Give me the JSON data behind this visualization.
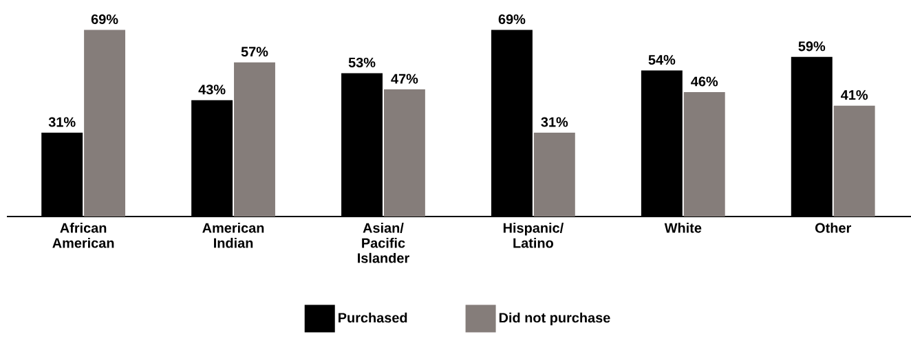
{
  "chart_data": {
    "type": "bar",
    "categories": [
      "African American",
      "American Indian",
      "Asian/ Pacific Islander",
      "Hispanic/ Latino",
      "White",
      "Other"
    ],
    "series": [
      {
        "name": "Purchased",
        "color": "#000000",
        "values": [
          31,
          43,
          53,
          69,
          54,
          59
        ],
        "value_labels": [
          "31%",
          "43%",
          "53%",
          "69%",
          "54%",
          "59%"
        ]
      },
      {
        "name": "Did not purchase",
        "color": "#857d7a",
        "values": [
          69,
          57,
          47,
          31,
          46,
          41
        ],
        "value_labels": [
          "69%",
          "57%",
          "47%",
          "31%",
          "46%",
          "41%"
        ]
      }
    ],
    "legend": "bottom"
  }
}
